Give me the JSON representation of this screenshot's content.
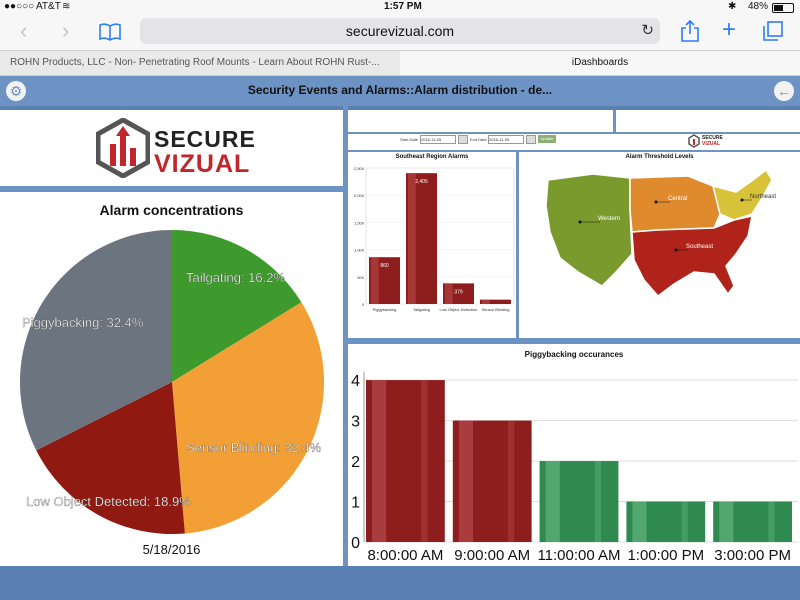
{
  "status_bar": {
    "carrier": "AT&T",
    "time": "1:57 PM",
    "battery": "48%"
  },
  "browser": {
    "url": "securevizual.com",
    "tabs": [
      {
        "label": "ROHN Products, LLC - Non- Penetrating Roof Mounts - Learn About ROHN Rust-..."
      },
      {
        "label": "iDashboards"
      }
    ]
  },
  "dashboard": {
    "title": "Security Events and Alarms::Alarm distribution - de..."
  },
  "logo": {
    "line1": "SECURE",
    "line2": "VIZUAL"
  },
  "pie_chart": {
    "title": "Alarm concentrations",
    "date": "5/18/2016",
    "slices": [
      {
        "label": "Tailgating: 16.2%",
        "value": 16.2,
        "color": "#3f9a2d"
      },
      {
        "label": "Sensor Blinding: 32.4%",
        "value": 32.4,
        "color": "#f2a035"
      },
      {
        "label": "Low Object Detected: 18.9%",
        "value": 18.9,
        "color": "#901a12"
      },
      {
        "label": "Piggybacking: 32.4%",
        "value": 32.4,
        "color": "#6c7480"
      }
    ]
  },
  "filters": {
    "start_label": "Start Date",
    "start_value": "2016-11-05",
    "end_label": "End Date",
    "end_value": "2016-11-05",
    "go": "Update"
  },
  "southeast_chart": {
    "title": "Southeast Region Alarms",
    "y_ticks": [
      "2,500",
      "2,000",
      "1,500",
      "1,000",
      "500",
      "0"
    ],
    "bars": [
      {
        "label": "Piggybacking",
        "value": 860,
        "value_label": "860"
      },
      {
        "label": "Tailgating",
        "value": 2405,
        "value_label": "2,405"
      },
      {
        "label": "Low Object Detection",
        "value": 379,
        "value_label": "379"
      },
      {
        "label": "Sensor Blinding",
        "value": 80,
        "value_label": ""
      }
    ]
  },
  "map": {
    "title": "Alarm Threshold Levels",
    "regions": [
      {
        "label": "Western",
        "color": "#7a9a2e"
      },
      {
        "label": "Central",
        "color": "#e08a2e"
      },
      {
        "label": "Northeast",
        "color": "#d8c23a"
      },
      {
        "label": "Southeast",
        "color": "#b0231a"
      }
    ]
  },
  "chart_data": {
    "type": "bar",
    "title": "Piggybacking occurances",
    "categories": [
      "8:00:00 AM",
      "9:00:00 AM",
      "11:00:00 AM",
      "1:00:00 PM",
      "3:00:00 PM"
    ],
    "values": [
      4,
      3,
      2,
      1,
      1
    ],
    "colors": [
      "#8e1d1d",
      "#8e1d1d",
      "#2f8a4f",
      "#2f8a4f",
      "#2f8a4f"
    ],
    "y_ticks": [
      0,
      1,
      2,
      3,
      4
    ],
    "ylim": [
      0,
      4.2
    ]
  }
}
